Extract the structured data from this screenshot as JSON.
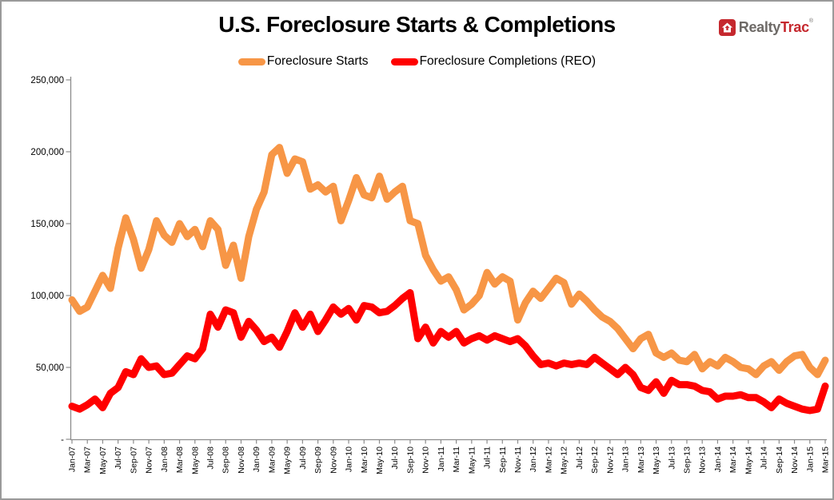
{
  "logo": {
    "realty": "Realty",
    "trac": "Trac",
    "reg": "®"
  },
  "chart_data": {
    "type": "line",
    "title": "U.S. Foreclosure Starts & Completions",
    "xlabel": "",
    "ylabel": "",
    "ylim": [
      0,
      250000
    ],
    "grid": false,
    "legend_position": "top",
    "x_tick_every": 2,
    "y_ticks": [
      {
        "label": "250,000",
        "value": 250000
      },
      {
        "label": "200,000",
        "value": 200000
      },
      {
        "label": "150,000",
        "value": 150000
      },
      {
        "label": "100,000",
        "value": 100000
      },
      {
        "label": "50,000",
        "value": 50000
      },
      {
        "label": "-",
        "value": 0
      }
    ],
    "x_months": [
      "Jan-07",
      "Feb-07",
      "Mar-07",
      "Apr-07",
      "May-07",
      "Jun-07",
      "Jul-07",
      "Aug-07",
      "Sep-07",
      "Oct-07",
      "Nov-07",
      "Dec-07",
      "Jan-08",
      "Feb-08",
      "Mar-08",
      "Apr-08",
      "May-08",
      "Jun-08",
      "Jul-08",
      "Aug-08",
      "Sep-08",
      "Oct-08",
      "Nov-08",
      "Dec-08",
      "Jan-09",
      "Feb-09",
      "Mar-09",
      "Apr-09",
      "May-09",
      "Jun-09",
      "Jul-09",
      "Aug-09",
      "Sep-09",
      "Oct-09",
      "Nov-09",
      "Dec-09",
      "Jan-10",
      "Feb-10",
      "Mar-10",
      "Apr-10",
      "May-10",
      "Jun-10",
      "Jul-10",
      "Aug-10",
      "Sep-10",
      "Oct-10",
      "Nov-10",
      "Dec-10",
      "Jan-11",
      "Feb-11",
      "Mar-11",
      "Apr-11",
      "May-11",
      "Jun-11",
      "Jul-11",
      "Aug-11",
      "Sep-11",
      "Oct-11",
      "Nov-11",
      "Dec-11",
      "Jan-12",
      "Feb-12",
      "Mar-12",
      "Apr-12",
      "May-12",
      "Jun-12",
      "Jul-12",
      "Aug-12",
      "Sep-12",
      "Oct-12",
      "Nov-12",
      "Dec-12",
      "Jan-13",
      "Feb-13",
      "Mar-13",
      "Apr-13",
      "May-13",
      "Jun-13",
      "Jul-13",
      "Aug-13",
      "Sep-13",
      "Oct-13",
      "Nov-13",
      "Dec-13",
      "Jan-14",
      "Feb-14",
      "Mar-14",
      "Apr-14",
      "May-14",
      "Jun-14",
      "Jul-14",
      "Aug-14",
      "Sep-14",
      "Oct-14",
      "Nov-14",
      "Dec-14",
      "Jan-15",
      "Feb-15",
      "Mar-15"
    ],
    "series": [
      {
        "name": "Foreclosure Starts",
        "color": "#F79646",
        "values": [
          97000,
          89000,
          92000,
          103000,
          114000,
          105000,
          133000,
          154000,
          139000,
          119000,
          132000,
          152000,
          142000,
          137000,
          150000,
          141000,
          146000,
          134000,
          152000,
          146000,
          121000,
          135000,
          112000,
          141000,
          160000,
          172000,
          198000,
          203000,
          185000,
          195000,
          193000,
          174000,
          177000,
          172000,
          176000,
          152000,
          166000,
          182000,
          170000,
          168000,
          183000,
          167000,
          172000,
          176000,
          152000,
          150000,
          128000,
          118000,
          110000,
          113000,
          104000,
          90000,
          94000,
          100000,
          116000,
          108000,
          113000,
          110000,
          83000,
          95000,
          103000,
          98000,
          105000,
          112000,
          109000,
          94000,
          101000,
          96000,
          90000,
          85000,
          82000,
          77000,
          70000,
          63000,
          70000,
          73000,
          60000,
          57000,
          60000,
          55000,
          54000,
          59000,
          49000,
          54000,
          51000,
          57000,
          54000,
          50000,
          49000,
          45000,
          51000,
          54000,
          48000,
          54000,
          58000,
          59000,
          50000,
          45000,
          55000
        ]
      },
      {
        "name": "Foreclosure Completions (REO)",
        "color": "#FF0000",
        "values": [
          23000,
          21000,
          24000,
          28000,
          22000,
          32000,
          36000,
          47000,
          45000,
          56000,
          50000,
          51000,
          45000,
          46000,
          52000,
          58000,
          56000,
          63000,
          87000,
          78000,
          90000,
          88000,
          71000,
          82000,
          76000,
          68000,
          71000,
          64000,
          75000,
          88000,
          78000,
          87000,
          75000,
          83000,
          92000,
          87000,
          91000,
          83000,
          93000,
          92000,
          88000,
          89000,
          93000,
          98000,
          102000,
          70000,
          78000,
          67000,
          75000,
          71000,
          75000,
          67000,
          70000,
          72000,
          69000,
          72000,
          70000,
          68000,
          70000,
          65000,
          58000,
          52000,
          53000,
          51000,
          53000,
          52000,
          53000,
          52000,
          57000,
          53000,
          49000,
          45000,
          50000,
          45000,
          36000,
          34000,
          40000,
          32000,
          41000,
          38000,
          38000,
          37000,
          34000,
          33000,
          28000,
          30000,
          30000,
          31000,
          29000,
          29000,
          26000,
          22000,
          28000,
          25000,
          23000,
          21000,
          20000,
          21000,
          37000
        ]
      }
    ]
  }
}
